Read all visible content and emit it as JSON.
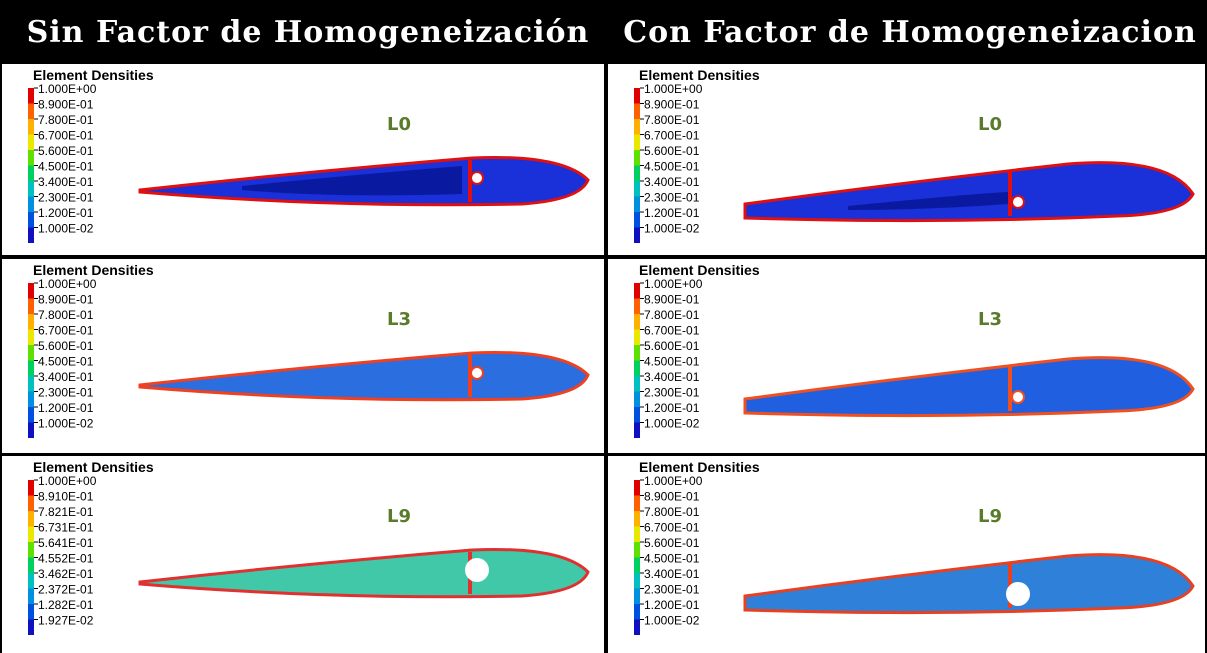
{
  "headers": [
    "Sin Factor de Homogeneización",
    "Con Factor de Homogeneizacion"
  ],
  "panels": [
    {
      "title": "Element Densities",
      "level": "L0",
      "legend": [
        "1.000E+00",
        "8.900E-01",
        "7.800E-01",
        "6.700E-01",
        "5.600E-01",
        "4.500E-01",
        "3.400E-01",
        "2.300E-01",
        "1.200E-01",
        "1.000E-02"
      ]
    },
    {
      "title": "Element Densities",
      "level": "L0",
      "legend": [
        "1.000E+00",
        "8.900E-01",
        "7.800E-01",
        "6.700E-01",
        "5.600E-01",
        "4.500E-01",
        "3.400E-01",
        "2.300E-01",
        "1.200E-01",
        "1.000E-02"
      ]
    },
    {
      "title": "Element Densities",
      "level": "L3",
      "legend": [
        "1.000E+00",
        "8.900E-01",
        "7.800E-01",
        "6.700E-01",
        "5.600E-01",
        "4.500E-01",
        "3.400E-01",
        "2.300E-01",
        "1.200E-01",
        "1.000E-02"
      ]
    },
    {
      "title": "Element Densities",
      "level": "L3",
      "legend": [
        "1.000E+00",
        "8.900E-01",
        "7.800E-01",
        "6.700E-01",
        "5.600E-01",
        "4.500E-01",
        "3.400E-01",
        "2.300E-01",
        "1.200E-01",
        "1.000E-02"
      ]
    },
    {
      "title": "Element Densities",
      "level": "L9",
      "legend": [
        "1.000E+00",
        "8.910E-01",
        "7.821E-01",
        "6.731E-01",
        "5.641E-01",
        "4.552E-01",
        "3.462E-01",
        "2.372E-01",
        "1.282E-01",
        "1.927E-02"
      ]
    },
    {
      "title": "Element Densities",
      "level": "L9",
      "legend": [
        "1.000E+00",
        "8.900E-01",
        "7.800E-01",
        "6.700E-01",
        "5.600E-01",
        "4.500E-01",
        "3.400E-01",
        "2.300E-01",
        "1.200E-01",
        "1.000E-02"
      ]
    }
  ]
}
